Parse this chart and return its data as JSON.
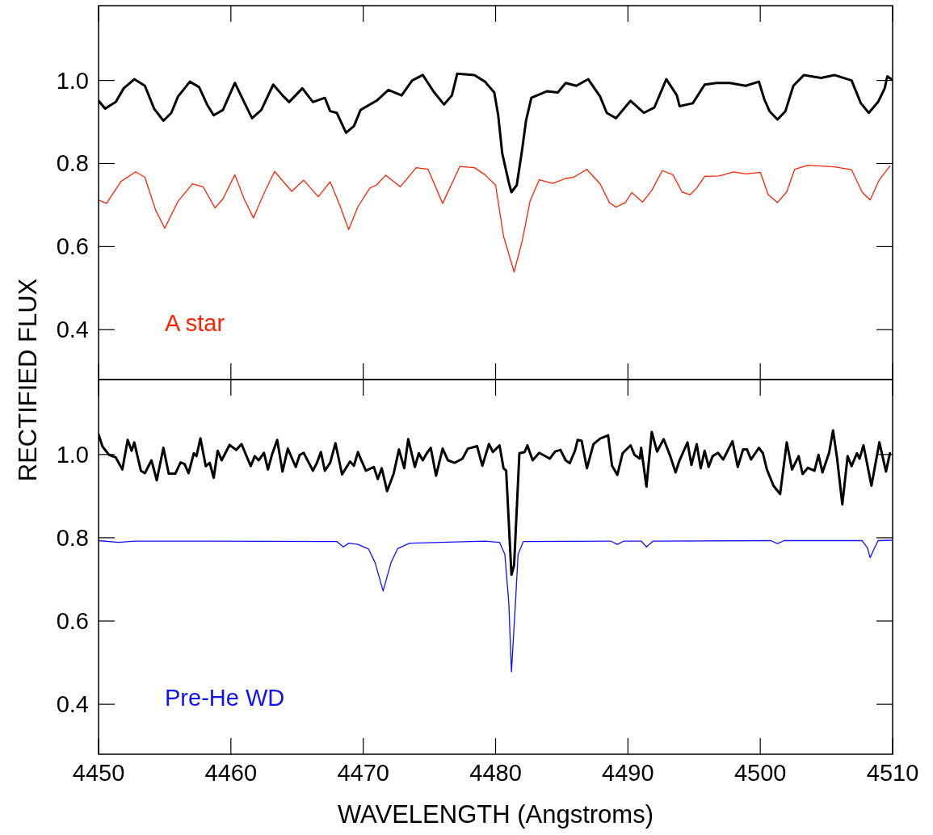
{
  "chart_data": [
    {
      "type": "line",
      "ylabel": "RECTIFIED FLUX",
      "tick_labels": "y",
      "xlim": [
        4450,
        4510
      ],
      "ylim": [
        0.28,
        1.18
      ],
      "xticks": [
        4450,
        4460,
        4470,
        4480,
        4490,
        4500,
        4510
      ],
      "yticks": [
        0.4,
        0.6,
        0.8,
        {
          "value": 1.0,
          "label": "1.0"
        }
      ],
      "series": [
        {
          "color": "#000000",
          "x": [
            4450,
            4450.5,
            4451.3,
            4451.9,
            4452.7,
            4453.5,
            4454.2,
            4454.9,
            4455.5,
            4456.0,
            4456.9,
            4457.6,
            4458.2,
            4458.7,
            4459.4,
            4460.3,
            4461.0,
            4461.6,
            4462.3,
            4463.2,
            4463.9,
            4464.4,
            4465.4,
            4466.2,
            4467.1,
            4467.5,
            4468.0,
            4468.7,
            4469.3,
            4469.8,
            4471.0,
            4471.9,
            4472.9,
            4473.7,
            4474.5,
            4475.3,
            4476.1,
            4476.7,
            4477.1,
            4478.4,
            4479.2,
            4479.9,
            4480.2,
            4480.5,
            4481.0,
            4481.2,
            4481.6,
            4482.0,
            4482.3,
            4482.7,
            4483.9,
            4484.7,
            4485.3,
            4486.1,
            4487.0,
            4487.9,
            4488.4,
            4489.1,
            4490.2,
            4491.2,
            4492.0,
            4492.9,
            4493.7,
            4493.9,
            4494.9,
            4495.8,
            4496.7,
            4497.7,
            4498.9,
            4499.9,
            4500.3,
            4500.7,
            4501.3,
            4501.9,
            4502.5,
            4503.3,
            4504.6,
            4505.6,
            4506.9,
            4507.6,
            4508.2,
            4508.9,
            4509.4,
            4509.6,
            4509.9
          ],
          "values": [
            0.951,
            0.932,
            0.948,
            0.981,
            1.003,
            0.987,
            0.932,
            0.903,
            0.922,
            0.961,
            0.997,
            0.984,
            0.942,
            0.916,
            0.929,
            0.994,
            0.948,
            0.909,
            0.929,
            0.99,
            0.964,
            0.948,
            0.981,
            0.948,
            0.958,
            0.926,
            0.922,
            0.874,
            0.89,
            0.929,
            0.951,
            0.977,
            0.964,
            1.0,
            1.013,
            0.974,
            0.942,
            0.964,
            1.016,
            1.013,
            0.997,
            0.971,
            0.916,
            0.825,
            0.754,
            0.731,
            0.748,
            0.832,
            0.903,
            0.958,
            0.974,
            0.971,
            0.994,
            0.987,
            1.003,
            0.961,
            0.922,
            0.909,
            0.951,
            0.922,
            0.935,
            1.003,
            0.964,
            0.938,
            0.945,
            0.99,
            0.994,
            0.994,
            0.987,
            0.997,
            0.955,
            0.926,
            0.906,
            0.926,
            0.987,
            1.013,
            1.006,
            1.013,
            1.0,
            0.945,
            0.922,
            0.948,
            0.981,
            1.01,
            1.003
          ]
        },
        {
          "name": "A star",
          "color": "#ff2200",
          "x": [
            4450,
            4450.6,
            4451.7,
            4452.8,
            4453.5,
            4454.3,
            4455.0,
            4456.0,
            4457.1,
            4457.9,
            4458.8,
            4459.4,
            4460.3,
            4461.0,
            4461.7,
            4462.5,
            4463.3,
            4464.6,
            4465.5,
            4466.6,
            4467.5,
            4468.2,
            4468.9,
            4469.6,
            4470.5,
            4471.0,
            4471.7,
            4472.8,
            4474.0,
            4474.9,
            4476.0,
            4477.3,
            4478.4,
            4479.2,
            4480.0,
            4480.6,
            4481.4,
            4482.0,
            4482.6,
            4483.3,
            4484.3,
            4485.3,
            4485.9,
            4486.9,
            4487.9,
            4488.6,
            4489.1,
            4489.8,
            4490.3,
            4491.1,
            4491.8,
            4492.6,
            4493.4,
            4494.1,
            4494.7,
            4495.2,
            4495.8,
            4496.9,
            4498.0,
            4498.9,
            4500.0,
            4500.6,
            4501.3,
            4502.0,
            4502.6,
            4503.6,
            4505.6,
            4506.9,
            4507.7,
            4508.3,
            4509.0,
            4509.8
          ],
          "values": [
            0.712,
            0.704,
            0.757,
            0.78,
            0.767,
            0.689,
            0.644,
            0.709,
            0.751,
            0.744,
            0.693,
            0.715,
            0.773,
            0.715,
            0.669,
            0.728,
            0.781,
            0.733,
            0.76,
            0.72,
            0.756,
            0.702,
            0.641,
            0.696,
            0.741,
            0.748,
            0.772,
            0.744,
            0.79,
            0.786,
            0.704,
            0.793,
            0.79,
            0.773,
            0.748,
            0.625,
            0.539,
            0.612,
            0.709,
            0.761,
            0.752,
            0.764,
            0.767,
            0.786,
            0.751,
            0.706,
            0.695,
            0.706,
            0.73,
            0.707,
            0.735,
            0.783,
            0.773,
            0.731,
            0.725,
            0.741,
            0.769,
            0.77,
            0.78,
            0.775,
            0.779,
            0.725,
            0.706,
            0.732,
            0.786,
            0.796,
            0.792,
            0.785,
            0.731,
            0.712,
            0.761,
            0.794
          ]
        }
      ]
    },
    {
      "type": "line",
      "xlabel": "WAVELENGTH (Angstroms)",
      "xlim": [
        4450,
        4510
      ],
      "ylim": [
        0.28,
        1.18
      ],
      "xticks": [
        4450,
        4460,
        4470,
        4480,
        4490,
        4500,
        4510
      ],
      "yticks": [
        0.4,
        0.6,
        0.8,
        {
          "value": 1.0,
          "label": "1.0"
        }
      ],
      "series": [
        {
          "color": "#000000",
          "x": [
            4450,
            4450.3,
            4450.8,
            4451.3,
            4451.8,
            4452.2,
            4452.5,
            4452.7,
            4453.2,
            4453.5,
            4454.0,
            4454.4,
            4454.9,
            4455.3,
            4455.8,
            4456.2,
            4456.5,
            4456.8,
            4457.2,
            4457.4,
            4457.7,
            4458.1,
            4458.4,
            4458.7,
            4459.0,
            4459.3,
            4459.9,
            4460.4,
            4460.8,
            4461.5,
            4461.8,
            4462.1,
            4462.5,
            4462.8,
            4463.1,
            4463.5,
            4463.9,
            4464.3,
            4464.9,
            4465.2,
            4465.5,
            4466.2,
            4466.5,
            4466.8,
            4467.1,
            4467.5,
            4467.9,
            4468.4,
            4469.0,
            4469.3,
            4469.6,
            4469.8,
            4470.2,
            4470.8,
            4471.1,
            4471.4,
            4471.8,
            4472.3,
            4472.7,
            4473.1,
            4473.4,
            4473.9,
            4474.2,
            4474.5,
            4474.8,
            4475.1,
            4475.5,
            4476.0,
            4476.4,
            4476.9,
            4477.5,
            4477.9,
            4478.6,
            4479.0,
            4479.5,
            4479.8,
            4480.3,
            4480.6,
            4480.8,
            4481.2,
            4481.4,
            4481.8,
            4482.2,
            4482.4,
            4482.8,
            4483.3,
            4484.1,
            4484.5,
            4484.9,
            4485.3,
            4485.6,
            4486.0,
            4486.2,
            4486.5,
            4486.9,
            4487.4,
            4487.9,
            4488.5,
            4488.8,
            4489.2,
            4489.6,
            4490.2,
            4490.5,
            4490.9,
            4491.0,
            4491.4,
            4491.8,
            4492.2,
            4492.7,
            4493.2,
            4493.6,
            4493.9,
            4494.5,
            4494.8,
            4495.2,
            4495.5,
            4495.8,
            4496.1,
            4496.4,
            4496.8,
            4497.2,
            4497.9,
            4498.3,
            4498.7,
            4499.0,
            4499.3,
            4499.9,
            4500.2,
            4500.5,
            4501.0,
            4501.5,
            4502.0,
            4502.4,
            4502.9,
            4503.2,
            4503.6,
            4504.1,
            4504.4,
            4504.7,
            4505.2,
            4505.5,
            4505.8,
            4506.2,
            4506.6,
            4506.9,
            4507.3,
            4507.5,
            4507.8,
            4508.4,
            4509.0,
            4509.5,
            4509.8
          ],
          "values": [
            1.048,
            1.019,
            0.999,
            0.993,
            0.964,
            1.035,
            1.009,
            1.029,
            0.961,
            0.955,
            0.986,
            0.938,
            1.016,
            0.954,
            0.954,
            0.981,
            0.977,
            0.955,
            1.003,
            0.996,
            1.039,
            0.972,
            0.98,
            0.944,
            1.009,
            0.986,
            1.023,
            1.011,
            1.025,
            0.972,
            0.996,
            0.986,
            1.004,
            0.964,
            0.999,
            1.035,
            0.959,
            1.014,
            0.97,
            0.999,
            1.004,
            0.961,
            0.98,
            1.006,
            0.961,
            0.98,
            1.027,
            0.952,
            0.983,
            0.973,
            1.006,
            0.99,
            0.961,
            0.97,
            0.941,
            0.967,
            0.912,
            0.954,
            1.012,
            0.967,
            1.037,
            0.97,
            1.003,
            0.986,
            1.003,
            1.016,
            0.949,
            1.014,
            0.986,
            0.98,
            0.99,
            1.014,
            1.02,
            0.973,
            1.025,
            1.006,
            1.022,
            0.967,
            0.961,
            0.711,
            0.734,
            1.003,
            1.006,
            1.022,
            0.986,
            1.004,
            0.99,
            1.007,
            1.011,
            0.986,
            0.979,
            1.009,
            1.035,
            1.033,
            0.967,
            1.025,
            1.038,
            1.046,
            0.973,
            0.951,
            1.003,
            1.022,
            0.999,
            0.99,
            1.016,
            0.923,
            1.054,
            1.007,
            1.037,
            0.996,
            0.957,
            0.986,
            1.029,
            0.975,
            1.025,
            0.967,
            1.009,
            0.97,
            0.996,
            1.004,
            0.988,
            1.032,
            0.97,
            1.012,
            1.012,
            0.988,
            1.016,
            1.003,
            0.964,
            0.925,
            0.905,
            1.029,
            0.964,
            0.996,
            0.953,
            0.968,
            0.961,
            0.999,
            0.957,
            1.004,
            1.058,
            0.992,
            0.88,
            0.996,
            0.972,
            1.003,
            0.99,
            1.022,
            0.925,
            1.029,
            0.959,
            1.003
          ]
        },
        {
          "name": "Pre-He WD",
          "color": "#1010ff",
          "x": [
            4450,
            4451.5,
            4452.7,
            4468.0,
            4468.5,
            4468.9,
            4469.6,
            4470.4,
            4470.9,
            4471.5,
            4472.1,
            4472.6,
            4473.5,
            4479.2,
            4480.3,
            4480.7,
            4481.0,
            4481.2,
            4481.5,
            4481.7,
            4482.1,
            4488.7,
            4489.2,
            4489.7,
            4491.0,
            4491.4,
            4491.9,
            4500.8,
            4501.3,
            4501.8,
            4507.7,
            4508.1,
            4508.3,
            4508.6,
            4508.9,
            4509.9
          ],
          "values": [
            0.793,
            0.789,
            0.792,
            0.791,
            0.778,
            0.787,
            0.784,
            0.773,
            0.74,
            0.672,
            0.74,
            0.774,
            0.787,
            0.792,
            0.789,
            0.76,
            0.643,
            0.478,
            0.643,
            0.76,
            0.791,
            0.792,
            0.784,
            0.792,
            0.792,
            0.778,
            0.792,
            0.793,
            0.786,
            0.793,
            0.793,
            0.776,
            0.752,
            0.773,
            0.793,
            0.794
          ]
        }
      ]
    }
  ]
}
